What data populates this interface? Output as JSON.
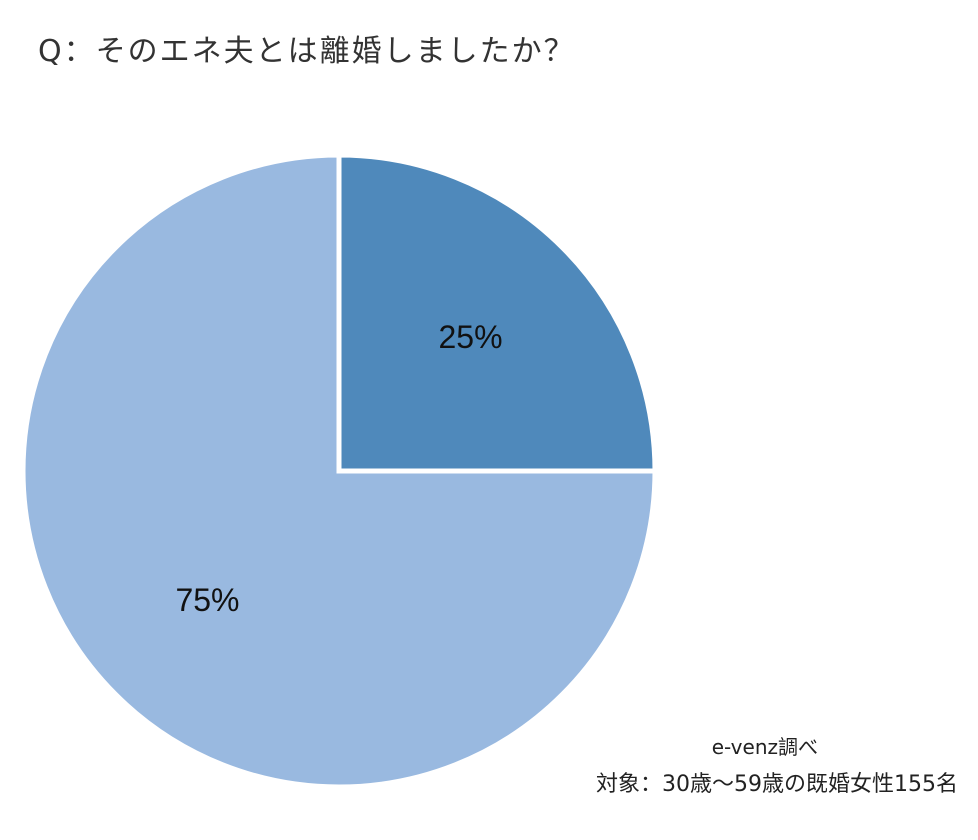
{
  "header": {
    "title": "Q：そのエネ夫とは離婚しましたか？"
  },
  "footer": {
    "source": "e-venz調べ",
    "note": "対象：30歳～59歳の既婚女性155名"
  },
  "chart_data": {
    "type": "pie",
    "title": "Q：そのエネ夫とは離婚しましたか？",
    "slices": [
      {
        "value": 25,
        "label": "25%",
        "color": "#4f89bb"
      },
      {
        "value": 75,
        "label": "75%",
        "color": "#99b9e0"
      }
    ],
    "start_angle": "top",
    "direction": "clockwise",
    "slice_border_color": "#ffffff"
  }
}
